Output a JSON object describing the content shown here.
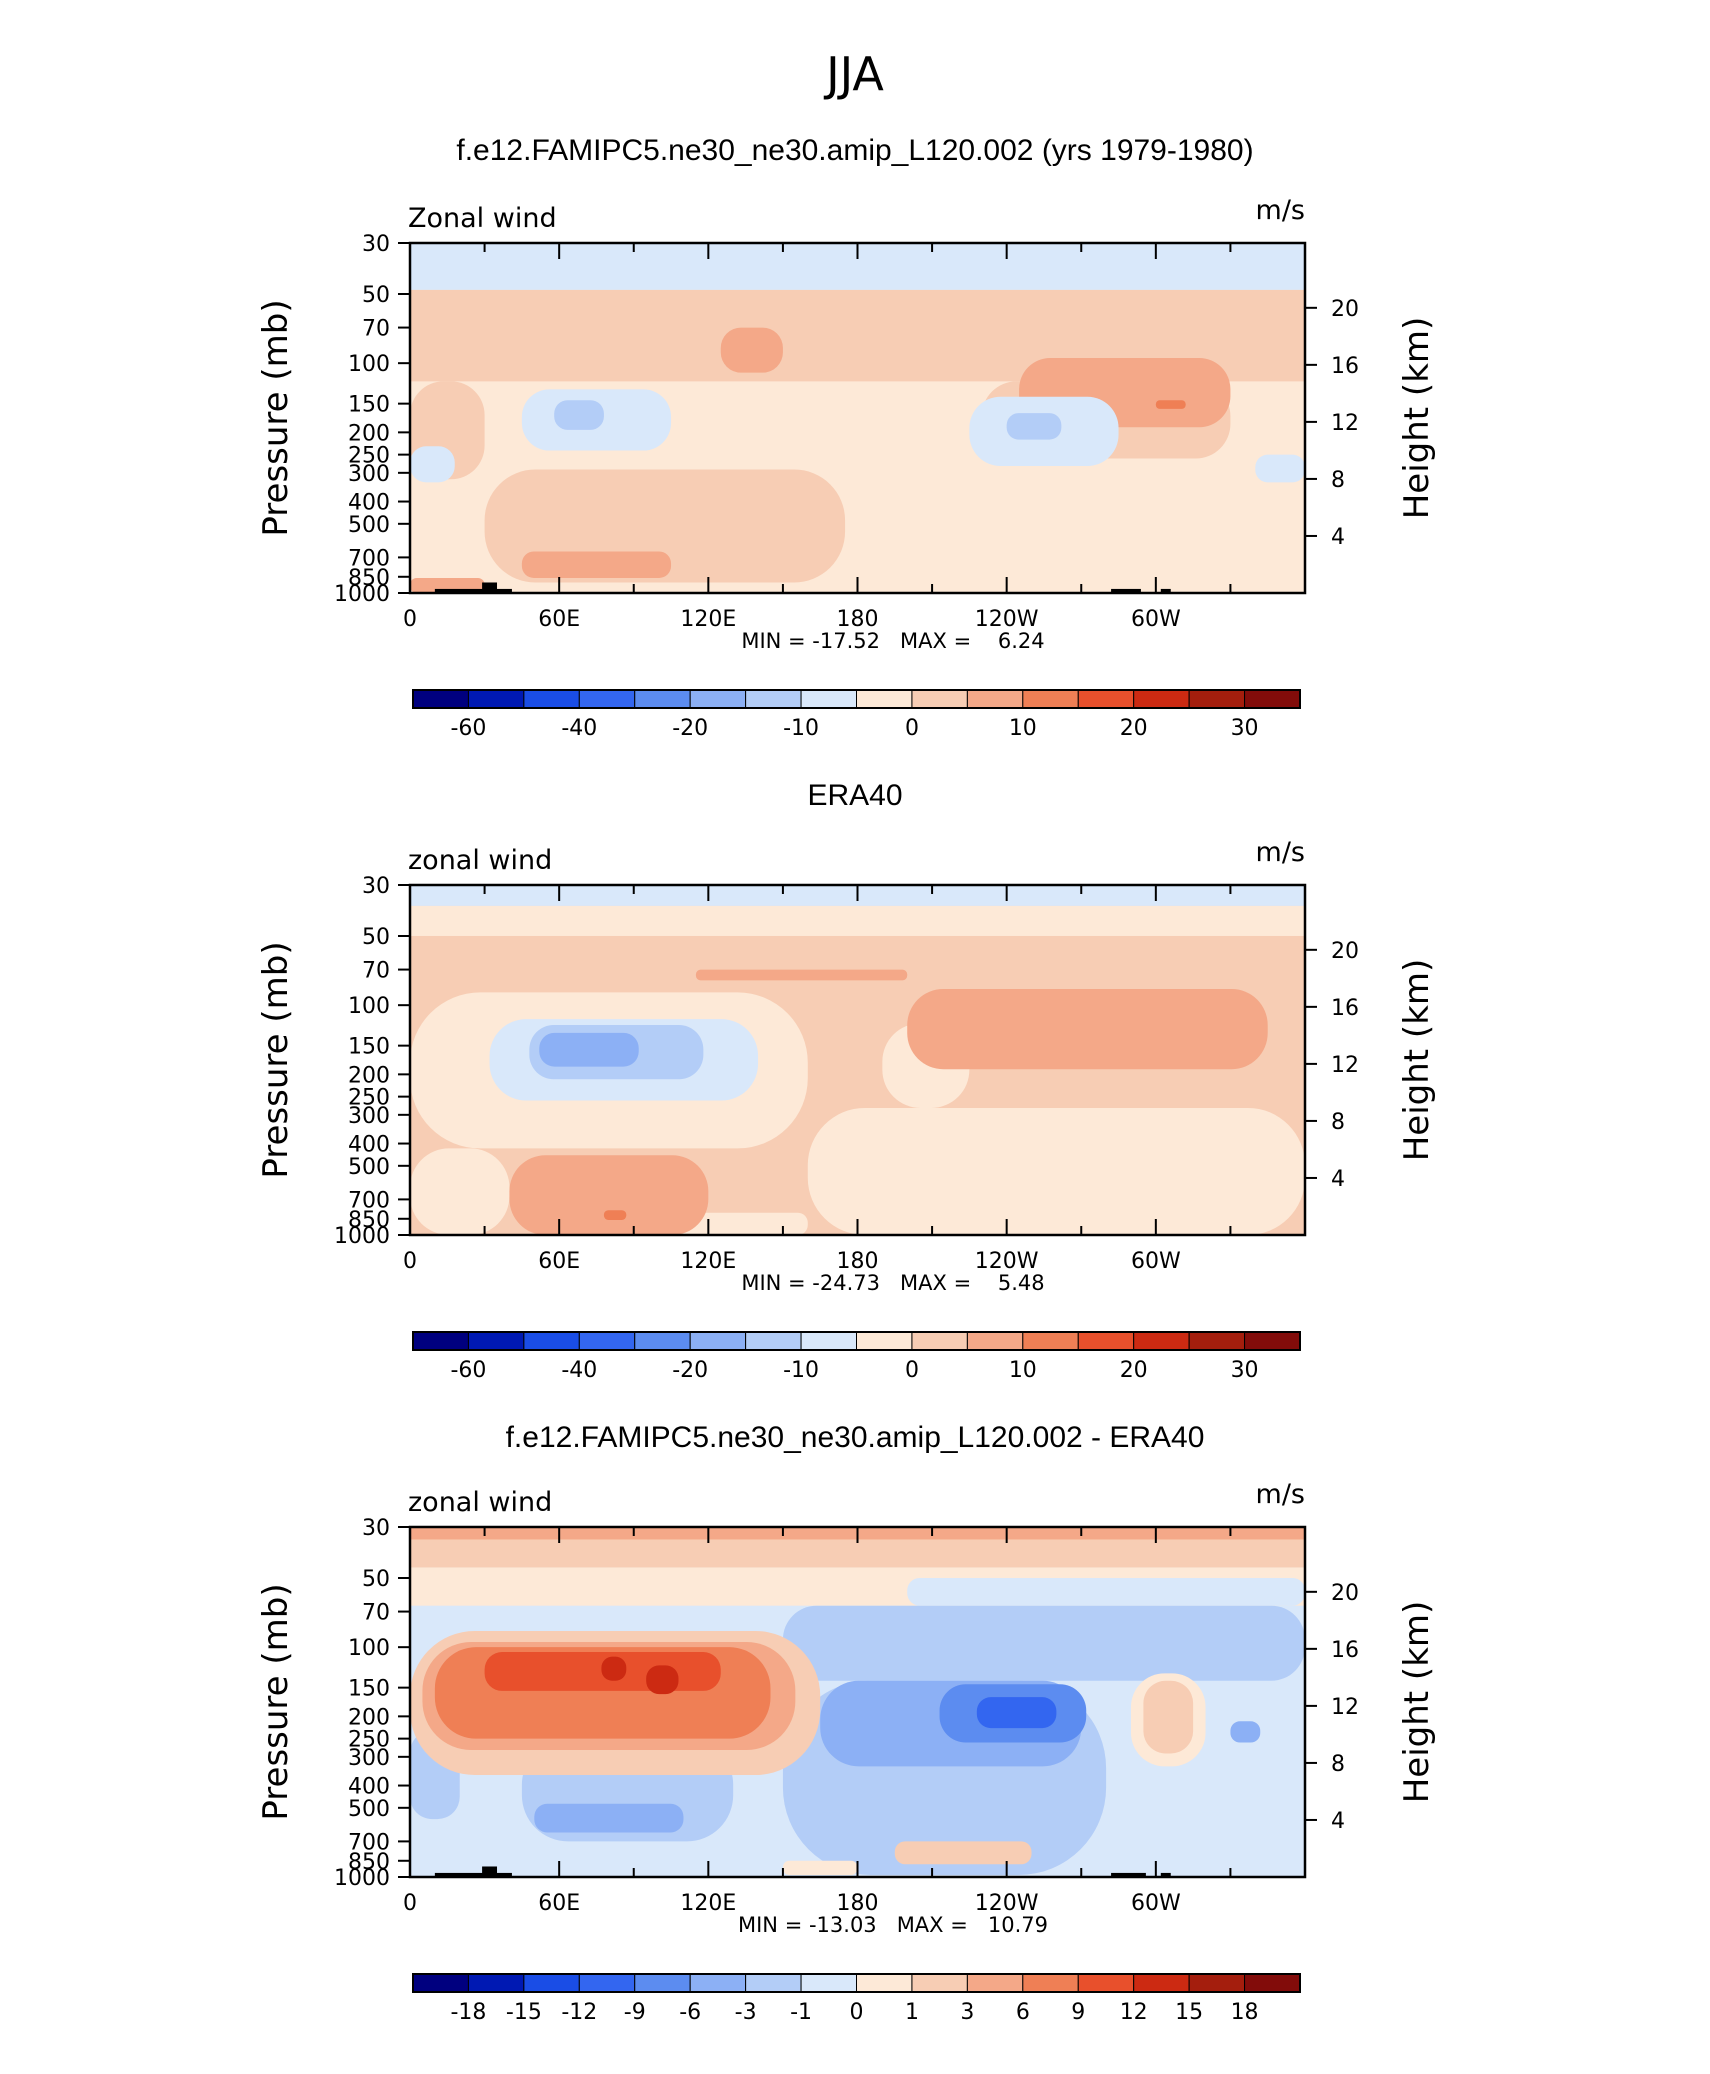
{
  "page_title": "JJA",
  "chart_data": [
    {
      "type": "heatmap",
      "title": "f.e12.FAMIPC5.ne30_ne30.amip_L120.002 (yrs 1979-1980)",
      "left_label": "Zonal wind",
      "right_label": "m/s",
      "ylabel": "Pressure (mb)",
      "y2label": "Height (km)",
      "x_ticks": [
        "0",
        "60E",
        "120E",
        "180",
        "120W",
        "60W"
      ],
      "x_tick_values": [
        0,
        60,
        120,
        180,
        240,
        300
      ],
      "xlim": [
        0,
        360
      ],
      "pressure_ticks": [
        "30",
        "50",
        "70",
        "100",
        "150",
        "200",
        "250",
        "300",
        "400",
        "500",
        "700",
        "850",
        "1000"
      ],
      "pressure_values": [
        30,
        50,
        70,
        100,
        150,
        200,
        250,
        300,
        400,
        500,
        700,
        850,
        1000
      ],
      "ylim": [
        30,
        1000
      ],
      "height_ticks": [
        "4",
        "8",
        "12",
        "16",
        "20"
      ],
      "height_values": [
        4,
        8,
        12,
        16,
        20
      ],
      "stats_text": "MIN = -17.52   MAX =    6.24",
      "min": -17.52,
      "max": 6.24,
      "colorbar_levels": [
        -70,
        -60,
        -50,
        -40,
        -30,
        -20,
        -15,
        -10,
        -5,
        0,
        5,
        10,
        15,
        20,
        25,
        30
      ],
      "colorbar_labels": [
        "-60",
        "-40",
        "-20",
        "-10",
        "0",
        "10",
        "20",
        "30"
      ],
      "colorbar_label_levels": [
        -60,
        -40,
        -20,
        -10,
        0,
        10,
        20,
        30
      ],
      "background_level": -5,
      "regions": [
        {
          "level": -10,
          "lon": [
            0,
            360
          ],
          "p": [
            30,
            48
          ]
        },
        {
          "level": 0,
          "lon": [
            0,
            360
          ],
          "p": [
            48,
            120
          ]
        },
        {
          "level": 0,
          "lon": [
            0,
            30
          ],
          "p": [
            120,
            320
          ]
        },
        {
          "level": 0,
          "lon": [
            30,
            175
          ],
          "p": [
            290,
            900
          ]
        },
        {
          "level": 0,
          "lon": [
            230,
            330
          ],
          "p": [
            120,
            260
          ]
        },
        {
          "level": 5,
          "lon": [
            125,
            150
          ],
          "p": [
            70,
            110
          ]
        },
        {
          "level": 5,
          "lon": [
            245,
            330
          ],
          "p": [
            95,
            190
          ]
        },
        {
          "level": 10,
          "lon": [
            300,
            312
          ],
          "p": [
            145,
            158
          ]
        },
        {
          "level": 5,
          "lon": [
            45,
            105
          ],
          "p": [
            660,
            860
          ]
        },
        {
          "level": 5,
          "lon": [
            0,
            30
          ],
          "p": [
            860,
            1000
          ]
        },
        {
          "level": -10,
          "lon": [
            45,
            105
          ],
          "p": [
            130,
            240
          ]
        },
        {
          "level": -15,
          "lon": [
            58,
            78
          ],
          "p": [
            145,
            195
          ]
        },
        {
          "level": -10,
          "lon": [
            225,
            285
          ],
          "p": [
            140,
            280
          ]
        },
        {
          "level": -15,
          "lon": [
            240,
            262
          ],
          "p": [
            165,
            215
          ]
        },
        {
          "level": -10,
          "lon": [
            0,
            18
          ],
          "p": [
            230,
            330
          ]
        },
        {
          "level": -10,
          "lon": [
            340,
            360
          ],
          "p": [
            250,
            330
          ]
        }
      ],
      "topography": [
        {
          "lon": [
            10,
            33
          ],
          "p_top": 960
        },
        {
          "lon": [
            29,
            35
          ],
          "p_top": 900
        },
        {
          "lon": [
            33,
            41
          ],
          "p_top": 960
        },
        {
          "lon": [
            282,
            294
          ],
          "p_top": 960
        },
        {
          "lon": [
            302,
            306
          ],
          "p_top": 960
        }
      ]
    },
    {
      "type": "heatmap",
      "title": "ERA40",
      "left_label": "zonal wind",
      "right_label": "m/s",
      "ylabel": "Pressure (mb)",
      "y2label": "Height (km)",
      "x_ticks": [
        "0",
        "60E",
        "120E",
        "180",
        "120W",
        "60W"
      ],
      "x_tick_values": [
        0,
        60,
        120,
        180,
        240,
        300
      ],
      "xlim": [
        0,
        360
      ],
      "pressure_ticks": [
        "30",
        "50",
        "70",
        "100",
        "150",
        "200",
        "250",
        "300",
        "400",
        "500",
        "700",
        "850",
        "1000"
      ],
      "pressure_values": [
        30,
        50,
        70,
        100,
        150,
        200,
        250,
        300,
        400,
        500,
        700,
        850,
        1000
      ],
      "ylim": [
        30,
        1000
      ],
      "height_ticks": [
        "4",
        "8",
        "12",
        "16",
        "20"
      ],
      "height_values": [
        4,
        8,
        12,
        16,
        20
      ],
      "stats_text": "MIN = -24.73   MAX =    5.48",
      "min": -24.73,
      "max": 5.48,
      "colorbar_levels": [
        -70,
        -60,
        -50,
        -40,
        -30,
        -20,
        -15,
        -10,
        -5,
        0,
        5,
        10,
        15,
        20,
        25,
        30
      ],
      "colorbar_labels": [
        "-60",
        "-40",
        "-20",
        "-10",
        "0",
        "10",
        "20",
        "30"
      ],
      "colorbar_label_levels": [
        -60,
        -40,
        -20,
        -10,
        0,
        10,
        20,
        30
      ],
      "background_level": 0,
      "regions": [
        {
          "level": -10,
          "lon": [
            0,
            360
          ],
          "p": [
            30,
            37
          ]
        },
        {
          "level": -5,
          "lon": [
            0,
            360
          ],
          "p": [
            37,
            50
          ]
        },
        {
          "level": -5,
          "lon": [
            0,
            160
          ],
          "p": [
            88,
            420
          ]
        },
        {
          "level": -5,
          "lon": [
            160,
            360
          ],
          "p": [
            280,
            1000
          ]
        },
        {
          "level": -5,
          "lon": [
            190,
            225
          ],
          "p": [
            120,
            280
          ]
        },
        {
          "level": -5,
          "lon": [
            0,
            40
          ],
          "p": [
            420,
            1000
          ]
        },
        {
          "level": -5,
          "lon": [
            85,
            160
          ],
          "p": [
            800,
            1000
          ]
        },
        {
          "level": 5,
          "lon": [
            200,
            345
          ],
          "p": [
            85,
            190
          ]
        },
        {
          "level": 5,
          "lon": [
            115,
            200
          ],
          "p": [
            70,
            78
          ]
        },
        {
          "level": 5,
          "lon": [
            40,
            120
          ],
          "p": [
            450,
            1000
          ]
        },
        {
          "level": 10,
          "lon": [
            78,
            87
          ],
          "p": [
            780,
            860
          ]
        },
        {
          "level": -10,
          "lon": [
            32,
            140
          ],
          "p": [
            115,
            260
          ]
        },
        {
          "level": -15,
          "lon": [
            48,
            118
          ],
          "p": [
            122,
            210
          ]
        },
        {
          "level": -20,
          "lon": [
            52,
            92
          ],
          "p": [
            132,
            185
          ]
        }
      ],
      "topography": []
    },
    {
      "type": "heatmap",
      "title": "f.e12.FAMIPC5.ne30_ne30.amip_L120.002 - ERA40",
      "left_label": "zonal wind",
      "right_label": "m/s",
      "ylabel": "Pressure (mb)",
      "y2label": "Height (km)",
      "x_ticks": [
        "0",
        "60E",
        "120E",
        "180",
        "120W",
        "60W"
      ],
      "x_tick_values": [
        0,
        60,
        120,
        180,
        240,
        300
      ],
      "xlim": [
        0,
        360
      ],
      "pressure_ticks": [
        "30",
        "50",
        "70",
        "100",
        "150",
        "200",
        "250",
        "300",
        "400",
        "500",
        "700",
        "850",
        "1000"
      ],
      "pressure_values": [
        30,
        50,
        70,
        100,
        150,
        200,
        250,
        300,
        400,
        500,
        700,
        850,
        1000
      ],
      "ylim": [
        30,
        1000
      ],
      "height_ticks": [
        "4",
        "8",
        "12",
        "16",
        "20"
      ],
      "height_values": [
        4,
        8,
        12,
        16,
        20
      ],
      "stats_text": "MIN = -13.03   MAX =   10.79",
      "min": -13.03,
      "max": 10.79,
      "colorbar_levels": [
        -21,
        -18,
        -15,
        -12,
        -9,
        -6,
        -3,
        -1,
        0,
        1,
        3,
        6,
        9,
        12,
        15,
        18
      ],
      "colorbar_labels": [
        "-18",
        "-15",
        "-12",
        "-9",
        "-6",
        "-3",
        "-1",
        "0",
        "1",
        "3",
        "6",
        "9",
        "12",
        "15",
        "18"
      ],
      "colorbar_label_levels": [
        -18,
        -15,
        -12,
        -9,
        -6,
        -3,
        -1,
        0,
        1,
        3,
        6,
        9,
        12,
        15,
        18
      ],
      "background_level": -1,
      "regions": [
        {
          "level": 3,
          "lon": [
            0,
            360
          ],
          "p": [
            30,
            34
          ]
        },
        {
          "level": 1,
          "lon": [
            0,
            360
          ],
          "p": [
            34,
            45
          ]
        },
        {
          "level": 0,
          "lon": [
            0,
            360
          ],
          "p": [
            45,
            66
          ]
        },
        {
          "level": -1,
          "lon": [
            200,
            360
          ],
          "p": [
            50,
            66
          ]
        },
        {
          "level": -3,
          "lon": [
            150,
            360
          ],
          "p": [
            66,
            140
          ]
        },
        {
          "level": -3,
          "lon": [
            0,
            20
          ],
          "p": [
            230,
            560
          ]
        },
        {
          "level": -3,
          "lon": [
            45,
            130
          ],
          "p": [
            250,
            700
          ]
        },
        {
          "level": -6,
          "lon": [
            50,
            110
          ],
          "p": [
            480,
            640
          ]
        },
        {
          "level": -3,
          "lon": [
            150,
            280
          ],
          "p": [
            140,
            980
          ]
        },
        {
          "level": -6,
          "lon": [
            165,
            270
          ],
          "p": [
            140,
            330
          ]
        },
        {
          "level": -9,
          "lon": [
            213,
            272
          ],
          "p": [
            145,
            260
          ]
        },
        {
          "level": -12,
          "lon": [
            228,
            260
          ],
          "p": [
            165,
            225
          ]
        },
        {
          "level": 1,
          "lon": [
            0,
            165
          ],
          "p": [
            85,
            360
          ]
        },
        {
          "level": 3,
          "lon": [
            5,
            155
          ],
          "p": [
            95,
            280
          ]
        },
        {
          "level": 6,
          "lon": [
            10,
            145
          ],
          "p": [
            100,
            250
          ]
        },
        {
          "level": 9,
          "lon": [
            30,
            125
          ],
          "p": [
            105,
            155
          ]
        },
        {
          "level": 12,
          "lon": [
            77,
            87
          ],
          "p": [
            110,
            140
          ]
        },
        {
          "level": 12,
          "lon": [
            95,
            108
          ],
          "p": [
            120,
            160
          ]
        },
        {
          "level": 0,
          "lon": [
            290,
            320
          ],
          "p": [
            130,
            330
          ]
        },
        {
          "level": 1,
          "lon": [
            295,
            315
          ],
          "p": [
            140,
            290
          ]
        },
        {
          "level": 0,
          "lon": [
            150,
            180
          ],
          "p": [
            850,
            980
          ]
        },
        {
          "level": 1,
          "lon": [
            195,
            250
          ],
          "p": [
            700,
            880
          ]
        },
        {
          "level": -6,
          "lon": [
            330,
            342
          ],
          "p": [
            210,
            260
          ]
        }
      ],
      "topography": [
        {
          "lon": [
            10,
            33
          ],
          "p_top": 960
        },
        {
          "lon": [
            29,
            35
          ],
          "p_top": 900
        },
        {
          "lon": [
            33,
            41
          ],
          "p_top": 960
        },
        {
          "lon": [
            282,
            296
          ],
          "p_top": 960
        },
        {
          "lon": [
            302,
            306
          ],
          "p_top": 960
        }
      ]
    }
  ],
  "colors": {
    "palette": [
      "#00007f",
      "#0019b3",
      "#1a4de6",
      "#3366f0",
      "#5c8cf0",
      "#8cb0f5",
      "#b3cdf7",
      "#d9e8fa",
      "#fde9d7",
      "#f7cdb4",
      "#f4a888",
      "#ef7f55",
      "#e8502c",
      "#cc2a12",
      "#a41e0d",
      "#820c0a"
    ],
    "outline": "#000000",
    "topography": "#000000"
  }
}
